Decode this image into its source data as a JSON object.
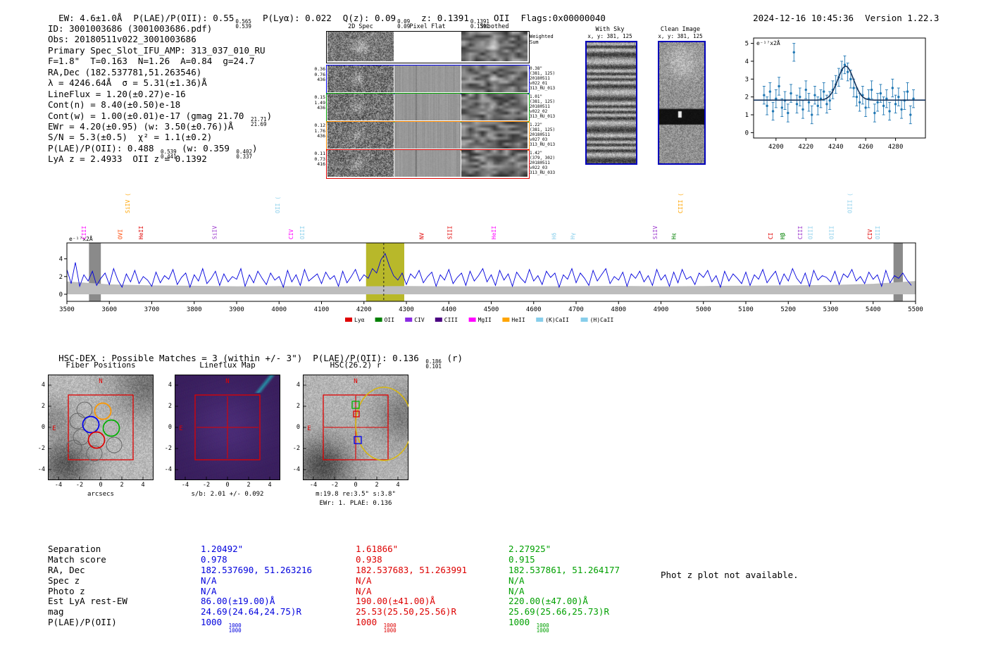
{
  "header": {
    "ew": "EW: 4.6±1.0Å",
    "plae": "P(LAE)/P(OII): 0.55",
    "plae_hi": "0.565",
    "plae_lo": "0.539",
    "plya": "P(Lyα): 0.022",
    "qz": "Q(z): 0.09",
    "qz_hi": "0.09",
    "qz_lo": "0.09",
    "z": "z: 0.1391",
    "z_hi": "0.1391",
    "z_lo": "0.1391",
    "line_id": "OII",
    "flags": "Flags:0x00000040",
    "timestamp": "2024-12-16 10:45:36",
    "version": "Version 1.22.3"
  },
  "info": {
    "id": "ID: 3001003686 (3001003686.pdf)",
    "obs": "Obs: 20180511v022_3001003686",
    "primary": "Primary Spec_Slot_IFU_AMP: 313_037_010_RU",
    "seeing": "F=1.8\"  T=0.163  N=1.26  A=0.84  g=24.7",
    "radec": "RA,Dec (182.537781,51.263546)",
    "lambda": "λ = 4246.64Å  σ = 5.31(±1.36)Å",
    "lineflux": "LineFlux = 1.20(±0.27)e-16",
    "cont_n": "Cont(n) = 8.40(±0.50)e-18",
    "cont_w_pre": "Cont(w) = 1.00(±0.01)e-17 (gmag 21.70 ",
    "gmag_hi": "21.71",
    "gmag_lo": "21.69",
    "cont_w_post": ")",
    "ewr": "EWr = 4.20(±0.95) (w: 3.50(±0.76))Å",
    "sn": "S/N = 5.3(±0.5)  χ² = 1.1(±0.2)",
    "plae_pre": "P(LAE)/P(OII): 0.488 ",
    "plae_hi": "0.539",
    "plae_lo": "0.441",
    "plae_mid": " (w: 0.359 ",
    "plae_w_hi": "0.402",
    "plae_w_lo": "0.337",
    "plae_post": ")",
    "lyz": "LyA z = 2.4933  OII z = 0.1392"
  },
  "cutout2d": {
    "col_headers": [
      "2D Spec",
      "Pixel Flat",
      "Smoothed"
    ],
    "weighted": [
      "Weighted",
      "Sum"
    ],
    "rows": [
      {
        "left": [
          "0.36",
          "0.76",
          "436"
        ],
        "right": [
          "0.38\"",
          "(381, 125)",
          "20180511",
          "v022_01",
          "313_RU_013"
        ],
        "color": "#0000ee"
      },
      {
        "left": [
          "0.15",
          "1.49",
          "436"
        ],
        "right": [
          "1.01\"",
          "(381, 125)",
          "20180511",
          "v022_02",
          "313_RU_013"
        ],
        "color": "#00a000"
      },
      {
        "left": [
          "0.12",
          "1.76",
          "436"
        ],
        "right": [
          "1.22\"",
          "(381, 125)",
          "20180511",
          "v027_03",
          "313_RU_013"
        ],
        "color": "#ff8c00"
      },
      {
        "left": [
          "0.11",
          "0.73",
          "416"
        ],
        "right": [
          "1.42\"",
          "(379, 302)",
          "20180511",
          "v022_03",
          "313_RU_033"
        ],
        "color": "#e00000"
      }
    ]
  },
  "sky": {
    "title": "With Sky",
    "xy": "x, y: 381, 125"
  },
  "clean": {
    "title": "Clean Image",
    "xy": "x, y: 381, 125"
  },
  "hsc_line": {
    "pre": "HSC-DEX : Possible Matches = 3 (within +/- 3\")  P(LAE)/P(OII): 0.136 ",
    "hi": "0.186",
    "lo": "0.101",
    "post": " (r)"
  },
  "cutouts": {
    "panels": [
      {
        "title": "Fiber Positions",
        "xlabel": "arcsecs",
        "sub": []
      },
      {
        "title": "Lineflux Map",
        "sub": [
          "s/b: 2.01 +/- 0.092"
        ]
      },
      {
        "title": "HSC(26.2) r",
        "sub": [
          "m:19.8 re:3.5\" s:3.8\"",
          "EWr: 1. PLAE: 0.136"
        ]
      }
    ],
    "ticks": [
      -4,
      -2,
      0,
      2,
      4
    ],
    "compass": {
      "n": "N",
      "e": "E"
    }
  },
  "table": {
    "row_labels": [
      "Separation",
      "Match score",
      "RA, Dec",
      "Spec z",
      "Photo z",
      "Est LyA rest-EW",
      "mag",
      "P(LAE)/P(OII)"
    ],
    "matches": [
      {
        "color": "#0000dd",
        "values": [
          "1.20492\"",
          "0.978",
          "182.537690, 51.263216",
          "N/A",
          "N/A",
          "86.00(±19.00)Å",
          "24.69(24.64,24.75)R",
          "1000"
        ],
        "stack": [
          "1000",
          "1000"
        ]
      },
      {
        "color": "#dd0000",
        "values": [
          "1.61866\"",
          "0.938",
          "182.537683, 51.263991",
          "N/A",
          "N/A",
          "190.00(±41.00)Å",
          "25.53(25.50,25.56)R",
          "1000"
        ],
        "stack": [
          "1000",
          "1000"
        ]
      },
      {
        "color": "#00a000",
        "values": [
          "2.27925\"",
          "0.915",
          "182.537861, 51.264177",
          "N/A",
          "N/A",
          "220.00(±47.00)Å",
          "25.69(25.66,25.73)R",
          "1000"
        ],
        "stack": [
          "1000",
          "1000"
        ]
      }
    ]
  },
  "note": "Phot z plot not available.",
  "chart_data": [
    {
      "type": "scatter",
      "title": "Line fit",
      "ylabel_annotation": "e⁻¹⁷x2Å",
      "xlim": [
        4185,
        4300
      ],
      "ylim": [
        -0.3,
        5.3
      ],
      "xticks": [
        4200,
        4220,
        4240,
        4260,
        4280
      ],
      "yticks": [
        0,
        1,
        2,
        3,
        4,
        5
      ],
      "x": [
        4192,
        4194,
        4196,
        4198,
        4200,
        4202,
        4204,
        4206,
        4208,
        4210,
        4212,
        4214,
        4216,
        4218,
        4220,
        4222,
        4224,
        4226,
        4228,
        4230,
        4232,
        4234,
        4236,
        4238,
        4240,
        4242,
        4244,
        4246,
        4248,
        4250,
        4252,
        4254,
        4256,
        4258,
        4260,
        4262,
        4264,
        4266,
        4268,
        4270,
        4272,
        4274,
        4276,
        4278,
        4280,
        4282,
        4284,
        4286,
        4288,
        4290,
        4292
      ],
      "y": [
        2.1,
        1.5,
        2.3,
        1.2,
        1.9,
        2.6,
        1.4,
        1.8,
        1.1,
        2.2,
        4.5,
        1.6,
        2.0,
        1.3,
        2.4,
        1.7,
        1.0,
        2.1,
        1.5,
        1.9,
        2.3,
        1.6,
        1.8,
        2.4,
        2.7,
        3.1,
        3.5,
        3.8,
        3.4,
        3.0,
        2.5,
        2.0,
        1.7,
        2.1,
        1.4,
        1.9,
        2.4,
        1.1,
        1.7,
        2.2,
        1.5,
        1.9,
        1.2,
        2.5,
        1.6,
        2.0,
        1.3,
        1.8,
        2.3,
        1.0,
        1.9
      ],
      "yerr": 0.5,
      "fit": {
        "type": "gaussian",
        "continuum": 1.82,
        "amplitude": 1.9,
        "mu": 4246.64,
        "sigma": 5.31
      }
    },
    {
      "type": "line",
      "title": "Full spectrum",
      "ylabel_annotation": "e⁻¹⁷x2Å",
      "x_start": 3500,
      "x_step": 10,
      "xlim": [
        3500,
        5500
      ],
      "ylim": [
        -0.8,
        5.8
      ],
      "xticks": [
        3500,
        3600,
        3700,
        3800,
        3900,
        4000,
        4100,
        4200,
        4300,
        4400,
        4500,
        4600,
        4700,
        4800,
        4900,
        5000,
        5100,
        5200,
        5300,
        5400,
        5500
      ],
      "yticks": [
        0,
        2,
        4
      ],
      "values": [
        2.8,
        1.2,
        3.6,
        0.9,
        2.2,
        1.5,
        2.6,
        1.0,
        1.8,
        2.4,
        1.1,
        2.9,
        1.6,
        0.8,
        2.3,
        1.4,
        2.7,
        1.2,
        2.0,
        1.6,
        0.9,
        2.5,
        1.3,
        2.1,
        1.7,
        2.8,
        1.1,
        1.9,
        2.4,
        0.8,
        2.2,
        1.5,
        2.9,
        1.2,
        1.8,
        2.6,
        1.0,
        2.3,
        1.4,
        2.0,
        1.7,
        2.9,
        0.9,
        2.2,
        1.3,
        2.6,
        1.8,
        1.1,
        2.4,
        1.6,
        2.0,
        0.8,
        2.7,
        1.4,
        2.2,
        1.0,
        2.8,
        1.5,
        1.9,
        2.3,
        1.2,
        2.5,
        1.7,
        2.1,
        0.9,
        2.6,
        1.3,
        2.0,
        2.8,
        1.5,
        2.2,
        1.8,
        2.9,
        2.4,
        3.9,
        4.6,
        3.2,
        2.1,
        1.6,
        2.4,
        1.1,
        2.3,
        1.8,
        2.7,
        1.3,
        2.0,
        2.5,
        0.9,
        2.2,
        1.6,
        2.8,
        1.2,
        1.9,
        2.4,
        1.0,
        2.6,
        1.5,
        2.1,
        2.9,
        1.4,
        2.2,
        1.0,
        2.7,
        1.6,
        2.3,
        0.9,
        2.5,
        1.8,
        1.3,
        2.8,
        1.5,
        2.1,
        1.1,
        2.6,
        1.9,
        2.4,
        0.8,
        2.2,
        1.7,
        2.9,
        1.3,
        2.4,
        1.8,
        1.0,
        2.7,
        1.5,
        2.2,
        2.9,
        1.2,
        2.0,
        1.6,
        2.5,
        0.9,
        2.3,
        1.8,
        2.6,
        1.4,
        2.1,
        1.0,
        2.8,
        1.6,
        2.2,
        0.9,
        2.5,
        1.3,
        2.8,
        1.7,
        2.0,
        1.1,
        2.4,
        1.9,
        2.7,
        1.4,
        2.1,
        0.8,
        2.6,
        1.5,
        2.3,
        1.8,
        1.2,
        2.5,
        1.0,
        2.2,
        1.7,
        2.8,
        1.3,
        2.0,
        2.6,
        1.1,
        2.3,
        1.5,
        2.9,
        1.8,
        1.2,
        2.4,
        0.9,
        2.7,
        1.6,
        2.1,
        1.9,
        1.4,
        2.6,
        1.1,
        2.3,
        1.9,
        2.8,
        1.5,
        2.0,
        1.2,
        2.5,
        1.7,
        2.2,
        0.9,
        2.7,
        1.3,
        2.1,
        1.8,
        2.4,
        1.6,
        1.0
      ],
      "noise_band": [
        1.45,
        1.12,
        1.0,
        0.96,
        0.9,
        0.92,
        0.88,
        0.9,
        0.93,
        0.9,
        0.88,
        0.9,
        0.92,
        0.95,
        0.9,
        0.93,
        0.97,
        1.0,
        1.05,
        1.18,
        1.5
      ],
      "highlight": {
        "x0": 4205,
        "x1": 4295,
        "color": "#b8b82a",
        "line": 4246.64
      },
      "masks": [
        {
          "x0": 3552,
          "x1": 3580
        },
        {
          "x0": 5448,
          "x1": 5470
        }
      ],
      "line_labels": [
        {
          "label": "CIII",
          "wl": 3540,
          "color": "#ff00ff",
          "tall": false
        },
        {
          "label": "OVI",
          "wl": 3625,
          "color": "#ff4500",
          "tall": false
        },
        {
          "label": "SiIV (",
          "wl": 3643,
          "color": "#ffa500",
          "tall": true
        },
        {
          "label": "HeII",
          "wl": 3674,
          "color": "#e00000",
          "tall": false
        },
        {
          "label": "SiIV",
          "wl": 3848,
          "color": "#9932cc",
          "tall": false
        },
        {
          "label": "OII (",
          "wl": 3996,
          "color": "#87ceeb",
          "tall": true
        },
        {
          "label": "CIV",
          "wl": 4028,
          "color": "#ff00ff",
          "tall": false
        },
        {
          "label": "OIII",
          "wl": 4054,
          "color": "#87ceeb",
          "tall": false
        },
        {
          "label": "NV",
          "wl": 4336,
          "color": "#e00000",
          "tall": false
        },
        {
          "label": "SIII",
          "wl": 4402,
          "color": "#e00000",
          "tall": false
        },
        {
          "label": "HeII",
          "wl": 4506,
          "color": "#ff00ff",
          "tall": false
        },
        {
          "label": "Hδ",
          "wl": 4648,
          "color": "#87ceeb",
          "tall": false
        },
        {
          "label": "Hγ",
          "wl": 4692,
          "color": "#87ceeb",
          "tall": false
        },
        {
          "label": "SiIV",
          "wl": 4886,
          "color": "#9932cc",
          "tall": false
        },
        {
          "label": "Hε",
          "wl": 4930,
          "color": "#008000",
          "tall": false
        },
        {
          "label": "CIII (",
          "wl": 4946,
          "color": "#ffa500",
          "tall": true
        },
        {
          "label": "CI",
          "wl": 5158,
          "color": "#e00000",
          "tall": false
        },
        {
          "label": "Hβ",
          "wl": 5186,
          "color": "#008000",
          "tall": false
        },
        {
          "label": "CIII",
          "wl": 5228,
          "color": "#9932cc",
          "tall": false
        },
        {
          "label": "OIII",
          "wl": 5252,
          "color": "#87ceeb",
          "tall": false
        },
        {
          "label": "OIII",
          "wl": 5302,
          "color": "#87ceeb",
          "tall": false
        },
        {
          "label": "OIII (",
          "wl": 5345,
          "color": "#87ceeb",
          "tall": true
        },
        {
          "label": "CIV",
          "wl": 5392,
          "color": "#e00000",
          "tall": false
        },
        {
          "label": "OIII",
          "wl": 5410,
          "color": "#87ceeb",
          "tall": false
        }
      ],
      "legend": [
        {
          "label": "Lyα",
          "color": "#e00000"
        },
        {
          "label": "OII",
          "color": "#008000"
        },
        {
          "label": "CIV",
          "color": "#8a2be2"
        },
        {
          "label": "CIII",
          "color": "#4b0082"
        },
        {
          "label": "MgII",
          "color": "#ff00ff"
        },
        {
          "label": "HeII",
          "color": "#ffa500"
        },
        {
          "label": "(K)CaII",
          "color": "#87ceeb"
        },
        {
          "label": "(H)CaII",
          "color": "#87ceeb"
        }
      ]
    }
  ]
}
